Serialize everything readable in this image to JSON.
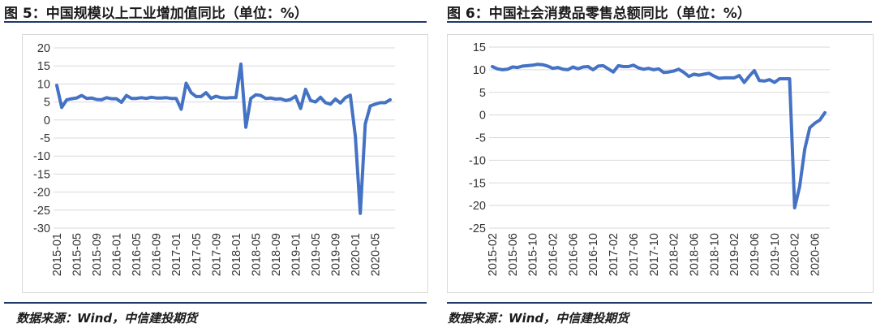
{
  "charts": [
    {
      "title": "图 5：中国规模以上工业增加值同比（单位：%）",
      "source": "数据来源：Wind，中信建投期货"
    },
    {
      "title": "图 6：中国社会消费品零售总额同比（单位：%）",
      "source": "数据来源：Wind，中信建投期货"
    }
  ],
  "chart_data": [
    {
      "type": "line",
      "title": "图 5：中国规模以上工业增加值同比（单位：%）",
      "xlabel": "",
      "ylabel": "",
      "ylim": [
        -30,
        20
      ],
      "yticks": [
        20,
        15,
        10,
        5,
        0,
        -5,
        -10,
        -15,
        -20,
        -25,
        -30
      ],
      "x_tick_labels": [
        "2015-01",
        "2015-05",
        "2015-09",
        "2016-01",
        "2016-05",
        "2016-09",
        "2017-01",
        "2017-05",
        "2017-09",
        "2018-01",
        "2018-05",
        "2018-09",
        "2019-01",
        "2019-05",
        "2019-09",
        "2020-01",
        "2020-05"
      ],
      "grid": "horizontal",
      "legend": "none",
      "color": "#4472c4",
      "x": [
        "2015-01",
        "2015-02",
        "2015-03",
        "2015-04",
        "2015-05",
        "2015-06",
        "2015-07",
        "2015-08",
        "2015-09",
        "2015-10",
        "2015-11",
        "2015-12",
        "2016-01",
        "2016-02",
        "2016-03",
        "2016-04",
        "2016-05",
        "2016-06",
        "2016-07",
        "2016-08",
        "2016-09",
        "2016-10",
        "2016-11",
        "2016-12",
        "2017-01",
        "2017-02",
        "2017-03",
        "2017-04",
        "2017-05",
        "2017-06",
        "2017-07",
        "2017-08",
        "2017-09",
        "2017-10",
        "2017-11",
        "2017-12",
        "2018-01",
        "2018-02",
        "2018-03",
        "2018-04",
        "2018-05",
        "2018-06",
        "2018-07",
        "2018-08",
        "2018-09",
        "2018-10",
        "2018-11",
        "2018-12",
        "2019-01",
        "2019-02",
        "2019-03",
        "2019-04",
        "2019-05",
        "2019-06",
        "2019-07",
        "2019-08",
        "2019-09",
        "2019-10",
        "2019-11",
        "2019-12",
        "2020-01",
        "2020-02",
        "2020-03",
        "2020-04",
        "2020-05",
        "2020-06",
        "2020-07",
        "2020-08"
      ],
      "values": [
        9.6,
        3.5,
        5.6,
        5.9,
        6.1,
        6.8,
        6.0,
        6.1,
        5.7,
        5.6,
        6.2,
        5.9,
        5.9,
        4.9,
        6.8,
        6.0,
        6.0,
        6.2,
        6.0,
        6.3,
        6.1,
        6.1,
        6.2,
        6.0,
        6.0,
        3.0,
        10.2,
        7.6,
        6.5,
        6.5,
        7.6,
        6.0,
        6.6,
        6.2,
        6.1,
        6.2,
        6.2,
        15.5,
        -2.0,
        6.0,
        7.0,
        6.8,
        6.0,
        6.1,
        5.8,
        5.9,
        5.4,
        5.7,
        6.6,
        3.2,
        8.5,
        5.4,
        5.0,
        6.3,
        4.8,
        4.4,
        5.8,
        4.7,
        6.2,
        6.9,
        -4.5,
        -25.9,
        -1.1,
        3.9,
        4.4,
        4.8,
        4.8,
        5.6
      ]
    },
    {
      "type": "line",
      "title": "图 6：中国社会消费品零售总额同比（单位：%）",
      "xlabel": "",
      "ylabel": "",
      "ylim": [
        -25,
        15
      ],
      "yticks": [
        15,
        10,
        5,
        0,
        -5,
        -10,
        -15,
        -20,
        -25
      ],
      "x_tick_labels": [
        "2015-02",
        "2015-06",
        "2015-10",
        "2016-02",
        "2016-06",
        "2016-10",
        "2017-02",
        "2017-06",
        "2017-10",
        "2018-02",
        "2018-06",
        "2018-10",
        "2019-02",
        "2019-06",
        "2019-10",
        "2020-02",
        "2020-06"
      ],
      "grid": "horizontal",
      "legend": "none",
      "color": "#4472c4",
      "x": [
        "2015-02",
        "2015-03",
        "2015-04",
        "2015-05",
        "2015-06",
        "2015-07",
        "2015-08",
        "2015-09",
        "2015-10",
        "2015-11",
        "2015-12",
        "2016-01",
        "2016-02",
        "2016-03",
        "2016-04",
        "2016-05",
        "2016-06",
        "2016-07",
        "2016-08",
        "2016-09",
        "2016-10",
        "2016-11",
        "2016-12",
        "2017-01",
        "2017-02",
        "2017-03",
        "2017-04",
        "2017-05",
        "2017-06",
        "2017-07",
        "2017-08",
        "2017-09",
        "2017-10",
        "2017-11",
        "2017-12",
        "2018-01",
        "2018-02",
        "2018-03",
        "2018-04",
        "2018-05",
        "2018-06",
        "2018-07",
        "2018-08",
        "2018-09",
        "2018-10",
        "2018-11",
        "2018-12",
        "2019-01",
        "2019-02",
        "2019-03",
        "2019-04",
        "2019-05",
        "2019-06",
        "2019-07",
        "2019-08",
        "2019-09",
        "2019-10",
        "2019-11",
        "2019-12",
        "2020-01",
        "2020-02",
        "2020-03",
        "2020-04",
        "2020-05",
        "2020-06",
        "2020-07",
        "2020-08"
      ],
      "values": [
        10.7,
        10.2,
        10.0,
        10.1,
        10.6,
        10.5,
        10.8,
        10.9,
        11.0,
        11.2,
        11.1,
        10.8,
        10.3,
        10.5,
        10.1,
        10.0,
        10.6,
        10.2,
        10.6,
        10.7,
        10.0,
        10.8,
        10.9,
        10.2,
        9.5,
        10.9,
        10.7,
        10.7,
        11.0,
        10.4,
        10.1,
        10.3,
        10.0,
        10.2,
        9.4,
        9.5,
        9.7,
        10.1,
        9.4,
        8.5,
        9.0,
        8.8,
        9.0,
        9.2,
        8.6,
        8.1,
        8.2,
        8.2,
        8.2,
        8.7,
        7.2,
        8.6,
        9.8,
        7.6,
        7.5,
        7.8,
        7.2,
        8.0,
        8.0,
        8.0,
        -20.5,
        -15.8,
        -7.5,
        -2.8,
        -1.8,
        -1.1,
        0.5
      ]
    }
  ]
}
